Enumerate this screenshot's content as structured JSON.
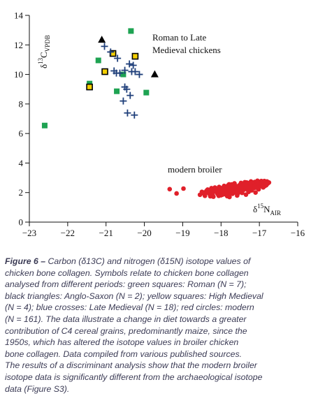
{
  "chart_data": {
    "type": "scatter",
    "xlim": [
      -23,
      -16
    ],
    "ylim": [
      0,
      14
    ],
    "xticks": [
      {
        "value": -23,
        "label": "−23"
      },
      {
        "value": -22,
        "label": "−22"
      },
      {
        "value": -21,
        "label": "−21"
      },
      {
        "value": -20,
        "label": "−20"
      },
      {
        "value": -19,
        "label": "−19"
      },
      {
        "value": -18,
        "label": "−18"
      },
      {
        "value": -17,
        "label": "−17"
      },
      {
        "value": -16,
        "label": "−16"
      }
    ],
    "yticks": [
      0,
      2,
      4,
      6,
      8,
      10,
      12,
      14
    ],
    "x_label": {
      "pre": "δ",
      "sup": "15",
      "main": "N",
      "sub": "AIR"
    },
    "y_label": {
      "pre": "δ",
      "sup": "13",
      "main": "C",
      "sub": "VPDB"
    },
    "annotations": [
      {
        "lines": [
          "Roman to Late",
          "Medieval chickens"
        ]
      },
      {
        "lines": [
          "modern broiler"
        ]
      }
    ],
    "series": [
      {
        "marker": "square",
        "color": "#1ea352",
        "x": [
          -22.6,
          -21.43,
          -21.2,
          -20.35,
          -20.72,
          -19.95,
          -20.55
        ],
        "y": [
          6.54,
          9.38,
          10.95,
          12.94,
          8.86,
          8.77,
          10.0
        ]
      },
      {
        "marker": "triangle",
        "color": "#000000",
        "x": [
          -21.11,
          -19.73
        ],
        "y": [
          12.34,
          10.0
        ]
      },
      {
        "marker": "square",
        "color": "#f5d000",
        "edgecolor": "#000000",
        "x": [
          -21.43,
          -21.03,
          -20.82,
          -20.24
        ],
        "y": [
          9.15,
          10.19,
          11.42,
          11.23
        ]
      },
      {
        "marker": "cross",
        "color": "#1f3f7a",
        "x": [
          -21.04,
          -20.88,
          -20.7,
          -20.79,
          -20.64,
          -20.51,
          -20.39,
          -20.29,
          -20.33,
          -20.24,
          -20.13,
          -20.51,
          -20.46,
          -20.37,
          -20.55,
          -20.44,
          -20.26,
          -20.73
        ],
        "y": [
          11.9,
          11.52,
          11.09,
          10.24,
          10.09,
          10.28,
          10.71,
          10.62,
          10.19,
          10.19,
          10.0,
          9.15,
          9.0,
          8.58,
          8.2,
          7.39,
          7.25,
          10.09
        ]
      },
      {
        "marker": "circle",
        "color": "#e0202a",
        "x": [
          -19.34,
          -19.16,
          -18.98,
          -18.55,
          -18.5,
          -18.42,
          -18.38,
          -18.3,
          -18.25,
          -18.2,
          -18.15,
          -18.1,
          -18.05,
          -18.0,
          -17.95,
          -17.92,
          -17.88,
          -17.85,
          -17.8,
          -17.78,
          -17.75,
          -17.72,
          -17.7,
          -17.68,
          -17.65,
          -17.62,
          -17.6,
          -17.58,
          -17.55,
          -17.52,
          -17.5,
          -17.48,
          -17.45,
          -17.42,
          -17.4,
          -17.38,
          -17.35,
          -17.32,
          -17.3,
          -17.28,
          -17.25,
          -17.22,
          -17.2,
          -17.18,
          -17.15,
          -17.12,
          -17.1,
          -17.08,
          -17.05,
          -17.02,
          -17.0,
          -16.98,
          -16.95,
          -16.92,
          -16.9,
          -16.88,
          -16.85,
          -16.82,
          -16.8,
          -16.75,
          -18.45,
          -18.35,
          -18.28,
          -18.18,
          -18.08,
          -17.98,
          -17.9,
          -17.82,
          -17.74,
          -17.66,
          -17.57,
          -17.49,
          -17.41,
          -17.33,
          -17.26,
          -17.19,
          -17.11,
          -17.04,
          -16.97,
          -16.89,
          -18.4,
          -18.22,
          -18.12,
          -18.02,
          -17.93,
          -17.84,
          -17.76,
          -17.69,
          -17.61,
          -17.54,
          -17.46,
          -17.37,
          -17.29,
          -17.21,
          -17.14,
          -17.06,
          -16.99,
          -16.93,
          -16.86,
          -16.78,
          -18.32,
          -18.14,
          -18.04,
          -17.96,
          -17.87,
          -17.79,
          -17.71,
          -17.63,
          -17.56,
          -17.47,
          -17.39,
          -17.31,
          -17.23,
          -17.16,
          -17.07,
          -17.01,
          -16.94,
          -16.87,
          -18.26,
          -18.06,
          -17.97,
          -17.89,
          -17.81,
          -17.73,
          -17.64,
          -17.53,
          -17.44,
          -17.34,
          -17.24,
          -17.13,
          -17.03,
          -16.96,
          -16.84,
          -18.48,
          -18.16,
          -17.94,
          -17.86,
          -17.77,
          -17.67,
          -17.59,
          -17.51,
          -17.43,
          -17.36,
          -17.27,
          -17.17,
          -17.09,
          -16.91,
          -16.83,
          -17.83,
          -17.71,
          -17.62,
          -17.52,
          -17.42,
          -17.33,
          -17.22,
          -17.12,
          -17.0,
          -16.92,
          -17.47,
          -17.18,
          -16.8
        ],
        "y": [
          2.23,
          1.94,
          2.27,
          1.85,
          2.05,
          1.78,
          2.12,
          1.9,
          2.3,
          1.72,
          2.08,
          1.95,
          2.38,
          1.82,
          2.15,
          2.45,
          1.88,
          2.25,
          2.02,
          1.7,
          2.35,
          2.55,
          1.92,
          2.18,
          2.62,
          2.0,
          2.4,
          1.8,
          2.28,
          2.5,
          2.1,
          2.65,
          1.98,
          2.42,
          2.2,
          2.7,
          1.86,
          2.33,
          2.58,
          2.05,
          2.48,
          2.75,
          2.15,
          2.6,
          2.3,
          2.72,
          2.0,
          2.52,
          2.8,
          2.22,
          2.66,
          2.45,
          2.78,
          2.55,
          2.35,
          2.72,
          2.6,
          2.5,
          2.75,
          2.68,
          2.0,
          2.2,
          1.75,
          2.1,
          1.88,
          2.3,
          2.05,
          2.48,
          1.95,
          2.22,
          2.4,
          2.08,
          2.55,
          2.25,
          2.65,
          2.38,
          2.58,
          2.42,
          2.62,
          2.5,
          1.96,
          1.84,
          2.18,
          2.0,
          2.32,
          1.76,
          2.14,
          2.52,
          2.06,
          2.36,
          2.26,
          2.48,
          2.12,
          2.68,
          2.4,
          2.64,
          2.56,
          2.7,
          2.44,
          2.62,
          2.16,
          2.24,
          2.1,
          1.86,
          2.2,
          2.56,
          2.34,
          2.44,
          1.94,
          2.6,
          2.52,
          2.36,
          2.46,
          2.58,
          2.74,
          2.4,
          2.64,
          2.78,
          2.02,
          1.78,
          2.12,
          2.28,
          1.9,
          2.14,
          2.32,
          2.06,
          2.3,
          2.44,
          2.36,
          2.46,
          2.54,
          2.58,
          2.62,
          1.96,
          2.34,
          1.92,
          2.36,
          2.16,
          2.0,
          2.12,
          2.18,
          2.28,
          2.62,
          2.14,
          2.52,
          2.34,
          2.48,
          2.56,
          2.4,
          2.26,
          2.46,
          2.2,
          2.52,
          2.68,
          2.62,
          2.4,
          2.5,
          2.4,
          2.32,
          2.68,
          2.58
        ]
      }
    ]
  },
  "caption": {
    "label": "Figure 6 –",
    "lines": [
      " Carbon (δ13C) and nitrogen (δ15N) isotope values of",
      "chicken bone collagen. Symbols relate to chicken bone collagen",
      "analysed from different periods: green squares: Roman (N = 7);",
      "black triangles: Anglo-Saxon (N = 2); yellow squares: High Medieval",
      "(N = 4); blue crosses: Late Medieval (N = 18); red circles: modern",
      "(N = 161). The data illustrate a change in diet towards a greater",
      "contribution of C4 cereal grains, predominantly maize, since the",
      "1950s, which has altered the isotope values in broiler chicken",
      "bone collagen. Data compiled from various published sources.",
      "The results of a discriminant analysis show that the modern broiler",
      "isotope data is significantly different from the archaeological isotope",
      "data (Figure S3)."
    ]
  }
}
